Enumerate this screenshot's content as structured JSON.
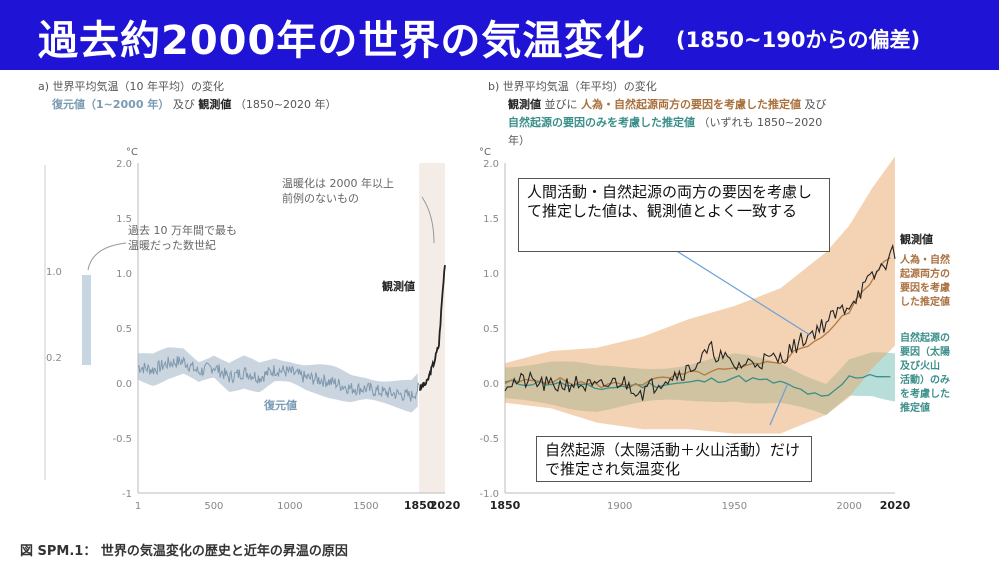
{
  "banner": {
    "title": "過去約2000年の世界の気温変化",
    "subtitle": "(1850~190からの偏差)"
  },
  "panel_a": {
    "label": "a)",
    "caption_line1": "世界平均気温（10 年平均）の変化",
    "caption_reconstructed": "復元値（1~2000 年）",
    "caption_and": "及び",
    "caption_observed": "観測値",
    "caption_observed_range": "（1850~2020 年）",
    "unit": "°C",
    "annotation_warm": [
      "過去 10 万年間で最も",
      "温暖だった数世紀"
    ],
    "annotation_unprecedented": [
      "温暖化は 2000 年以上",
      "前例のないもの"
    ],
    "label_observed": "観測値",
    "label_reconstructed": "復元値",
    "side_bar_top": "1.0",
    "side_bar_bottom": "0.2"
  },
  "panel_b": {
    "label": "b)",
    "caption_line1": "世界平均気温（年平均）の変化",
    "caption_observed": "観測値",
    "caption_and": "並びに",
    "caption_human_natural": "人為・自然起源両方の要因を考慮した推定値",
    "caption_and2": "及び",
    "caption_natural": "自然起源の要因のみを考慮した推定値",
    "caption_range": "（いずれも 1850~2020",
    "caption_range2": "年）",
    "unit": "°C",
    "label_observed": "観測値",
    "label_human_natural": [
      "人為・自然",
      "起源両方の",
      "要因を考慮",
      "した推定値"
    ],
    "label_natural": [
      "自然起源の",
      "要因（太陽",
      "及び火山",
      "活動）のみ",
      "を考慮した",
      "推定値"
    ]
  },
  "callout_top": "人間活動・自然起源の両方の要因を考慮して推定した値は、観測値とよく一致する",
  "callout_bottom": "自然起源（太陽活動＋火山活動）だけで推定され気温変化",
  "figure_caption": "図 SPM.1： 世界の気温変化の歴史と近年の昇温の原因",
  "colors": {
    "banner": "#1f14d6",
    "reconstructed": "#9fb3c4",
    "observed": "#222222",
    "human_natural": "#e8a86a",
    "natural": "#62b5ad"
  },
  "chart_data": [
    {
      "type": "line",
      "panel": "a",
      "x_ticks": [
        "1",
        "500",
        "1000",
        "1500",
        "1850",
        "2020"
      ],
      "y_ticks": [
        "-1",
        "-0.5",
        "0.0",
        "0.5",
        "1.0",
        "1.5",
        "2.0"
      ],
      "xlim": [
        1,
        2020
      ],
      "ylim": [
        -1,
        2.0
      ],
      "series": [
        {
          "name": "復元値",
          "x": [
            1,
            100,
            200,
            300,
            400,
            500,
            600,
            700,
            800,
            900,
            1000,
            1100,
            1200,
            1300,
            1400,
            1500,
            1600,
            1700,
            1800,
            1850
          ],
          "y": [
            0.15,
            0.12,
            0.18,
            0.2,
            0.1,
            0.15,
            0.05,
            0.1,
            0.05,
            0.12,
            0.1,
            0.05,
            0.03,
            0.0,
            -0.05,
            -0.05,
            -0.08,
            -0.1,
            -0.12,
            -0.05
          ]
        },
        {
          "name": "観測値",
          "x": [
            1850,
            1900,
            1950,
            1980,
            2000,
            2020
          ],
          "y": [
            -0.05,
            0.0,
            0.2,
            0.35,
            0.75,
            1.1
          ]
        }
      ]
    },
    {
      "type": "line",
      "panel": "b",
      "x_ticks": [
        "1850",
        "1900",
        "1950",
        "2000",
        "2020"
      ],
      "y_ticks": [
        "-1.0",
        "-0.5",
        "0.0",
        "0.5",
        "1.0",
        "1.5",
        "2.0"
      ],
      "xlim": [
        1850,
        2020
      ],
      "ylim": [
        -1.0,
        2.0
      ],
      "series": [
        {
          "name": "観測値",
          "x": [
            1850,
            1860,
            1870,
            1880,
            1890,
            1900,
            1910,
            1920,
            1930,
            1940,
            1950,
            1960,
            1970,
            1980,
            1990,
            2000,
            2010,
            2020
          ],
          "y": [
            0.0,
            0.02,
            -0.03,
            0.0,
            -0.05,
            0.02,
            -0.08,
            0.05,
            0.12,
            0.3,
            0.15,
            0.2,
            0.22,
            0.4,
            0.55,
            0.72,
            0.95,
            1.2
          ]
        },
        {
          "name": "人為・自然起源両方の要因を考慮した推定値",
          "x": [
            1850,
            1870,
            1890,
            1910,
            1930,
            1950,
            1970,
            1990,
            2000,
            2010,
            2020
          ],
          "y": [
            0.0,
            0.03,
            -0.02,
            0.0,
            0.08,
            0.12,
            0.2,
            0.45,
            0.65,
            0.95,
            1.2
          ]
        },
        {
          "name": "自然起源の要因のみを考慮した推定値",
          "x": [
            1850,
            1870,
            1890,
            1910,
            1930,
            1950,
            1970,
            1990,
            2000,
            2010,
            2020
          ],
          "y": [
            0.0,
            0.0,
            -0.05,
            -0.02,
            0.0,
            0.05,
            0.0,
            -0.15,
            0.05,
            0.08,
            0.05
          ]
        }
      ]
    }
  ]
}
